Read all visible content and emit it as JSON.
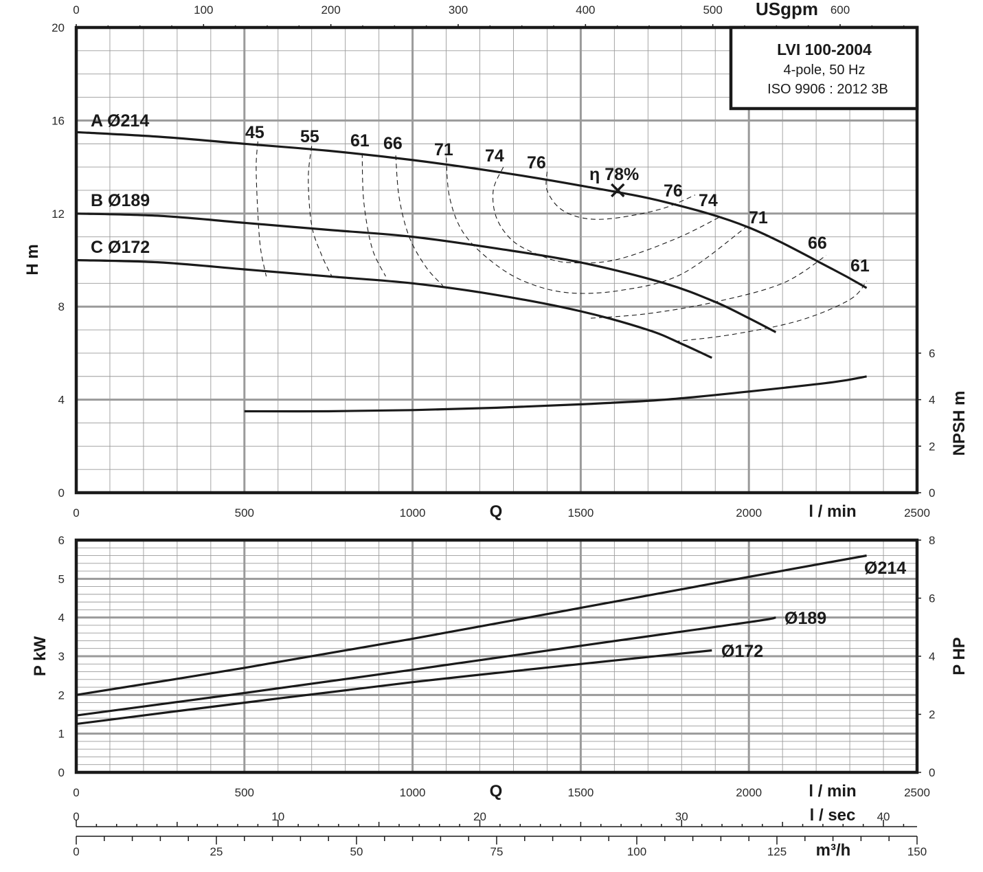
{
  "chart_data": [
    {
      "type": "line",
      "title": "LVI 100-2004",
      "subtitle_lines": [
        "4-pole, 50 Hz",
        "ISO 9906 : 2012 3B"
      ],
      "xlabel": "Q",
      "x_unit": "l / min",
      "ylabel": "H m",
      "y2label": "NPSH m",
      "top_axis_label": "USgpm",
      "xlim": [
        0,
        2500
      ],
      "ylim": [
        0,
        20
      ],
      "y2lim": [
        0,
        6
      ],
      "grid": true,
      "x_ticks": [
        "0",
        "500",
        "1000",
        "1500",
        "2000",
        "2500"
      ],
      "y_ticks": [
        "0",
        "4",
        "8",
        "12",
        "16",
        "20"
      ],
      "y2_ticks": [
        "0",
        "2",
        "4",
        "6"
      ],
      "top_ticks": [
        "0",
        "100",
        "200",
        "300",
        "400",
        "500",
        "600"
      ],
      "series": [
        {
          "name": "A Ø214",
          "label": "A Ø214",
          "x": [
            0,
            250,
            500,
            750,
            1000,
            1250,
            1500,
            1750,
            2000,
            2250,
            2350
          ],
          "y": [
            15.5,
            15.3,
            15.0,
            14.7,
            14.3,
            13.8,
            13.2,
            12.5,
            11.4,
            9.6,
            8.8
          ]
        },
        {
          "name": "B Ø189",
          "label": "B Ø189",
          "x": [
            0,
            250,
            500,
            750,
            1000,
            1250,
            1500,
            1750,
            1900,
            2000,
            2080
          ],
          "y": [
            12.0,
            11.9,
            11.6,
            11.3,
            11.0,
            10.5,
            9.9,
            9.0,
            8.2,
            7.5,
            6.9
          ]
        },
        {
          "name": "C Ø172",
          "label": "C Ø172",
          "x": [
            0,
            250,
            500,
            750,
            1000,
            1250,
            1500,
            1700,
            1800,
            1890
          ],
          "y": [
            10.0,
            9.9,
            9.6,
            9.3,
            9.0,
            8.5,
            7.8,
            7.0,
            6.4,
            5.8
          ]
        },
        {
          "name": "NPSH",
          "axis": "y2",
          "x": [
            500,
            750,
            1000,
            1250,
            1500,
            1750,
            2000,
            2250,
            2350
          ],
          "y": [
            3.5,
            3.5,
            3.55,
            3.65,
            3.8,
            4.0,
            4.35,
            4.75,
            5.0
          ]
        }
      ],
      "efficiency_contours": [
        {
          "label": "45",
          "x": [
            540,
            535,
            540,
            548,
            565
          ],
          "y": [
            15.1,
            14.0,
            12.0,
            10.5,
            9.3
          ]
        },
        {
          "label": "55",
          "x": [
            700,
            690,
            700,
            730,
            760
          ],
          "y": [
            14.9,
            13.5,
            11.5,
            10.2,
            9.3
          ]
        },
        {
          "label": "61",
          "x": [
            850,
            855,
            880,
            920
          ],
          "y": [
            14.6,
            12.5,
            10.5,
            9.3
          ]
        },
        {
          "label": "66",
          "x": [
            950,
            960,
            990,
            1040,
            1090
          ],
          "y": [
            14.5,
            12.7,
            11.0,
            9.7,
            8.9
          ]
        },
        {
          "label": "71",
          "x": [
            1100,
            1110,
            1150,
            1230,
            1330,
            1460,
            1620,
            1800,
            1990
          ],
          "y": [
            14.4,
            12.7,
            11.2,
            10.0,
            9.1,
            8.6,
            8.7,
            9.4,
            11.4
          ]
        },
        {
          "label": "74",
          "x": [
            1270,
            1240,
            1250,
            1300,
            1380,
            1460,
            1600,
            1780,
            1920
          ],
          "y": [
            14.0,
            13.0,
            11.8,
            10.8,
            10.2,
            9.9,
            10.0,
            10.9,
            11.9
          ]
        },
        {
          "label": "76",
          "x": [
            1400,
            1400,
            1440,
            1510,
            1600,
            1740,
            1840
          ],
          "y": [
            13.8,
            13.0,
            12.2,
            11.8,
            11.8,
            12.2,
            12.8
          ]
        },
        {
          "label": "66",
          "x": [
            1530,
            1700,
            1900,
            2100,
            2230
          ],
          "y": [
            7.5,
            7.7,
            8.2,
            9.0,
            10.2
          ]
        },
        {
          "label": "61",
          "x": [
            1780,
            1950,
            2150,
            2300,
            2350
          ],
          "y": [
            6.5,
            6.8,
            7.4,
            8.3,
            9.1
          ]
        }
      ],
      "efficiency_labels": [
        "45",
        "55",
        "61",
        "66",
        "71",
        "74",
        "76",
        "76",
        "74",
        "71",
        "66",
        "61"
      ],
      "bep": {
        "label": "η 78%",
        "x": 1610,
        "y": 13.0
      }
    },
    {
      "type": "line",
      "xlabel": "Q",
      "x_unit": "l / min",
      "x2_unit": "l / sec",
      "x3_unit": "m³/h",
      "ylabel": "P kW",
      "y2label": "P HP",
      "xlim": [
        0,
        2500
      ],
      "ylim": [
        0,
        6
      ],
      "y2lim": [
        0,
        8
      ],
      "grid": true,
      "x_ticks": [
        "0",
        "500",
        "1000",
        "1500",
        "2000",
        "2500"
      ],
      "y_ticks": [
        "0",
        "1",
        "2",
        "3",
        "4",
        "5",
        "6"
      ],
      "y2_ticks": [
        "0",
        "2",
        "4",
        "6",
        "8"
      ],
      "lsec_ticks": [
        "0",
        "10",
        "20",
        "30",
        "40"
      ],
      "m3h_ticks": [
        "0",
        "25",
        "50",
        "75",
        "100",
        "125",
        "150"
      ],
      "series": [
        {
          "name": "Ø214",
          "label": "Ø214",
          "x": [
            0,
            500,
            1000,
            1500,
            2000,
            2350
          ],
          "y": [
            2.0,
            2.7,
            3.45,
            4.25,
            5.05,
            5.6
          ]
        },
        {
          "name": "Ø189",
          "label": "Ø189",
          "x": [
            0,
            500,
            1000,
            1500,
            2000,
            2080
          ],
          "y": [
            1.47,
            2.05,
            2.65,
            3.27,
            3.88,
            4.0
          ]
        },
        {
          "name": "Ø172",
          "label": "Ø172",
          "x": [
            0,
            500,
            1000,
            1500,
            1890
          ],
          "y": [
            1.25,
            1.8,
            2.33,
            2.8,
            3.15
          ]
        }
      ]
    }
  ]
}
